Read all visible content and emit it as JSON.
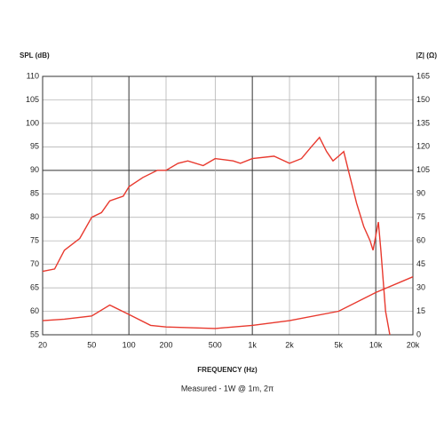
{
  "chart_data": {
    "type": "line",
    "y_label": "SPL (dB)",
    "y2_label": "|Z| (Ω)",
    "x_label": "FREQUENCY (Hz)",
    "subtitle": "Measured - 1W @ 1m, 2π",
    "xlog": true,
    "grid": true,
    "xlim": [
      20,
      20000
    ],
    "xticks": [
      20,
      50,
      100,
      200,
      500,
      {
        "value": 1000,
        "label": "1k"
      },
      {
        "value": 2000,
        "label": "2k"
      },
      {
        "value": 5000,
        "label": "5k"
      },
      {
        "value": 10000,
        "label": "10k"
      },
      {
        "value": 20000,
        "label": "20k"
      }
    ],
    "ylim": [
      55,
      110
    ],
    "yticks": [
      55,
      60,
      65,
      70,
      75,
      80,
      85,
      90,
      95,
      100,
      105,
      110
    ],
    "y2lim": [
      0,
      165
    ],
    "y2ticks": [
      0,
      15,
      30,
      45,
      60,
      75,
      90,
      105,
      120,
      135,
      150,
      165
    ],
    "series": [
      {
        "color": "#e8392e",
        "x": [
          20,
          25,
          30,
          40,
          50,
          60,
          70,
          90,
          100,
          130,
          170,
          200,
          250,
          300,
          400,
          500,
          700,
          800,
          1000,
          1500,
          2000,
          2500,
          3000,
          3500,
          4000,
          4500,
          5000,
          5500,
          6000,
          7000,
          8000,
          9000,
          9500,
          10500,
          11000,
          12000,
          13000
        ],
        "values": [
          68.5,
          69,
          73,
          75.5,
          80,
          81,
          83.5,
          84.5,
          86.5,
          88.5,
          90,
          90,
          91.5,
          92,
          91,
          92.5,
          92,
          91.5,
          92.5,
          93,
          91.5,
          92.5,
          95,
          97,
          94,
          92,
          93,
          94,
          90,
          83,
          78,
          75,
          73,
          79,
          73,
          60,
          55
        ]
      },
      {
        "color": "#e8392e",
        "axis": "y2",
        "x": [
          20,
          30,
          50,
          70,
          100,
          150,
          200,
          500,
          1000,
          2000,
          5000,
          10000,
          20000
        ],
        "values": [
          9,
          10,
          12,
          19,
          13,
          6,
          5,
          4,
          6,
          9,
          15,
          27,
          37
        ]
      }
    ]
  }
}
